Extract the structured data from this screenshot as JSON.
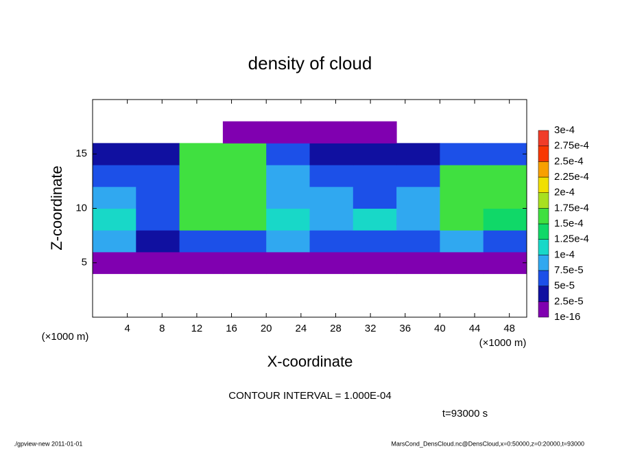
{
  "chart_data": {
    "type": "contour",
    "title": "density of cloud",
    "xlabel": "X-coordinate",
    "ylabel": "Z-coordinate",
    "x_unit_label": "(×1000 m)",
    "y_unit_label": "(×1000 m)",
    "xlim": [
      0,
      50
    ],
    "ylim": [
      0,
      20
    ],
    "xticks": [
      4,
      8,
      12,
      16,
      20,
      24,
      28,
      32,
      36,
      40,
      44,
      48
    ],
    "yticks": [
      5,
      10,
      15
    ],
    "x_edges": [
      0,
      5,
      10,
      15,
      20,
      25,
      30,
      35,
      40,
      45,
      50
    ],
    "z_edges": [
      4,
      6,
      8,
      10,
      12,
      14,
      16,
      18
    ],
    "values": [
      [
        1e-05,
        1e-05,
        1e-05,
        1e-05,
        1e-05,
        1e-05,
        1e-05,
        1e-05,
        1e-05,
        1e-05
      ],
      [
        8e-05,
        4e-05,
        7e-05,
        6e-05,
        9e-05,
        5e-05,
        6e-05,
        6e-05,
        9e-05,
        7e-05
      ],
      [
        0.00011,
        7e-05,
        0.00016,
        0.00016,
        0.00011,
        9e-05,
        0.0001,
        9e-05,
        0.00015,
        0.00014
      ],
      [
        9e-05,
        6e-05,
        0.00017,
        0.00017,
        8e-05,
        8e-05,
        7e-05,
        8e-05,
        0.00016,
        0.00016
      ],
      [
        5e-05,
        6e-05,
        0.00017,
        0.00017,
        8e-05,
        6e-05,
        5e-05,
        5e-05,
        0.00015,
        0.00016
      ],
      [
        3e-05,
        4e-05,
        0.00016,
        0.00016,
        6e-05,
        3e-05,
        3e-05,
        3e-05,
        5e-05,
        5e-05
      ],
      [
        null,
        null,
        null,
        1e-05,
        1e-05,
        1e-05,
        1e-05,
        null,
        null,
        null
      ]
    ],
    "colorbar": {
      "levels": [
        {
          "value": 1e-16,
          "label": "1e-16"
        },
        {
          "value": 2.5e-05,
          "label": "2.5e-5"
        },
        {
          "value": 5e-05,
          "label": "5e-5"
        },
        {
          "value": 7.5e-05,
          "label": "7.5e-5"
        },
        {
          "value": 0.0001,
          "label": "1e-4"
        },
        {
          "value": 0.000125,
          "label": "1.25e-4"
        },
        {
          "value": 0.00015,
          "label": "1.5e-4"
        },
        {
          "value": 0.000175,
          "label": "1.75e-4"
        },
        {
          "value": 0.0002,
          "label": "2e-4"
        },
        {
          "value": 0.000225,
          "label": "2.25e-4"
        },
        {
          "value": 0.00025,
          "label": "2.5e-4"
        },
        {
          "value": 0.000275,
          "label": "2.75e-4"
        },
        {
          "value": 0.0003,
          "label": "3e-4"
        }
      ],
      "colors": [
        "#8000b0",
        "#1010a0",
        "#1c50e8",
        "#30a8f0",
        "#18d8c8",
        "#10d868",
        "#40e040",
        "#a8e020",
        "#f0e000",
        "#f8a000",
        "#f83800",
        "#f03c28"
      ]
    },
    "contour_interval": "CONTOUR INTERVAL = 1.000E-04",
    "time_label": "t=93000 s",
    "footer_left": "./gpview-new   2011-01-01",
    "footer_right": "MarsCond_DensCloud.nc@DensCloud,x=0:50000,z=0:20000,t=93000"
  }
}
